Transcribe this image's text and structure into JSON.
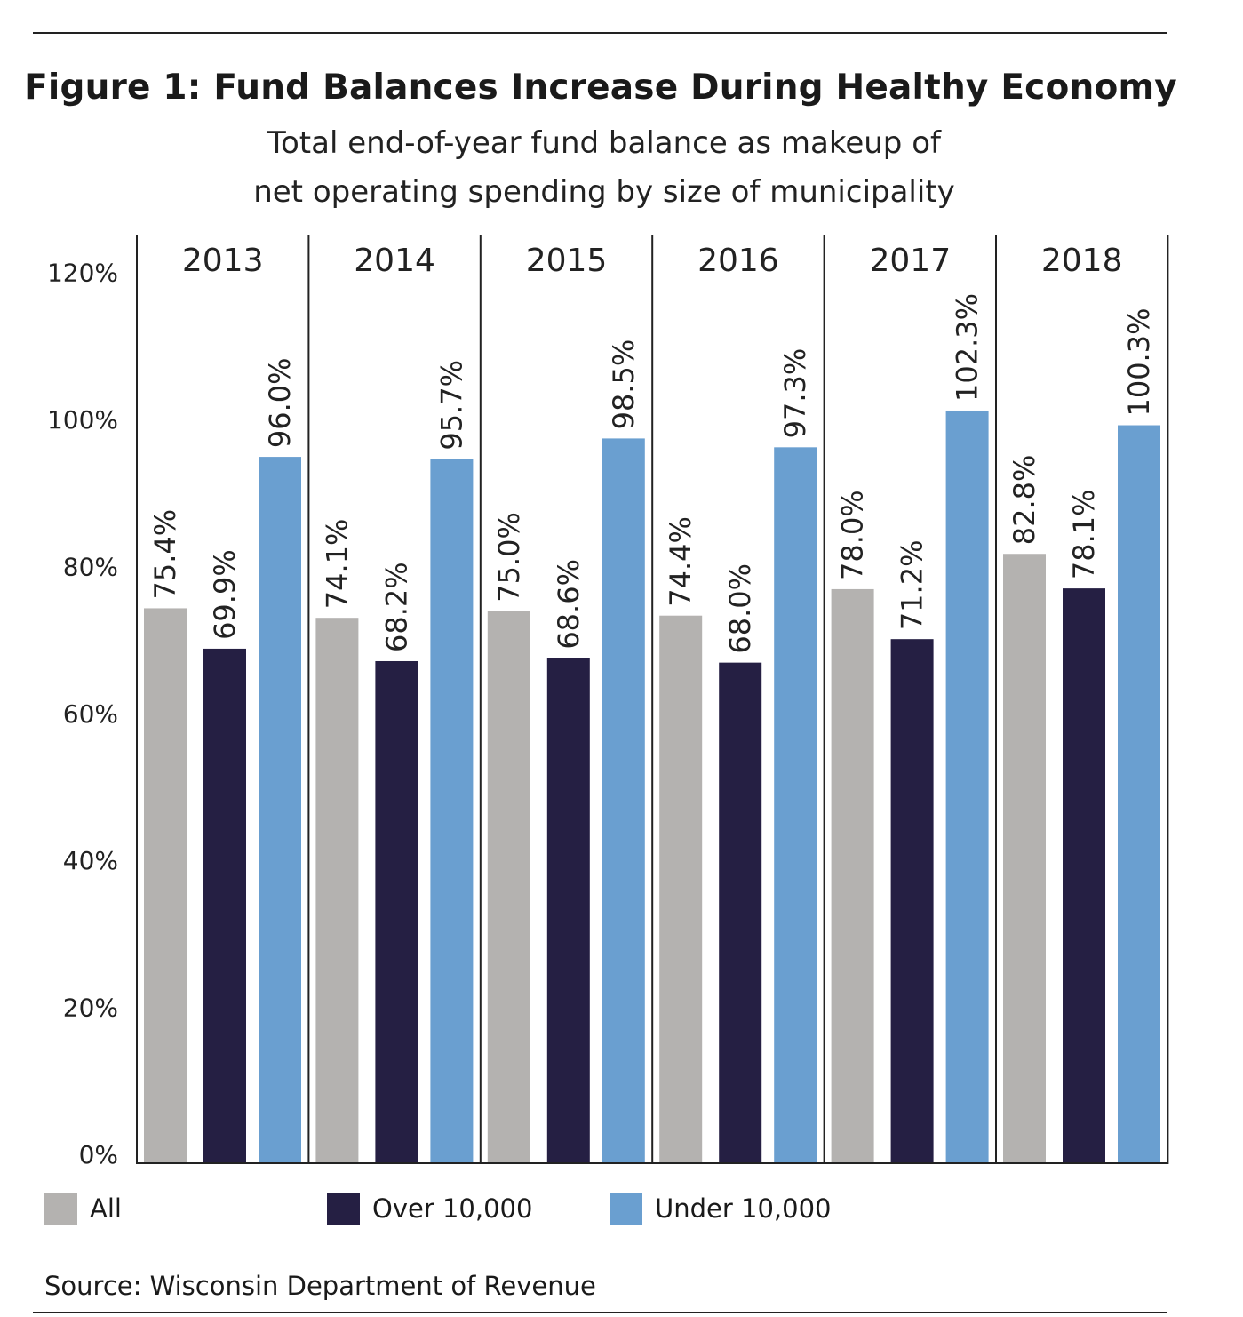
{
  "header": {
    "title": "Figure 1: Fund Balances Increase During Healthy Economy",
    "subtitle": "Total end-of-year fund balance as makeup of net operating spending by size of municipality"
  },
  "colors": {
    "all": "#b4b2b0",
    "over": "#251f43",
    "under": "#6a9fd0"
  },
  "legend": [
    {
      "name": "All",
      "color": "#b4b2b0"
    },
    {
      "name": "Over 10,000",
      "color": "#251f43"
    },
    {
      "name": "Under 10,000",
      "color": "#6a9fd0"
    }
  ],
  "source": "Source: Wisconsin Department of Revenue",
  "chart_data": {
    "type": "bar",
    "categories": [
      "2013",
      "2014",
      "2015",
      "2016",
      "2017",
      "2018"
    ],
    "series": [
      {
        "name": "All",
        "values": [
          75.4,
          74.1,
          75.0,
          74.4,
          78.0,
          82.8
        ],
        "labels": [
          "75.4%",
          "74.1%",
          "75.0%",
          "74.4%",
          "78.0%",
          "82.8%"
        ]
      },
      {
        "name": "Over 10,000",
        "values": [
          69.9,
          68.2,
          68.6,
          68.0,
          71.2,
          78.1
        ],
        "labels": [
          "69.9%",
          "68.2%",
          "68.6%",
          "68.0%",
          "71.2%",
          "78.1%"
        ]
      },
      {
        "name": "Under 10,000",
        "values": [
          96.0,
          95.7,
          98.5,
          97.3,
          102.3,
          100.3
        ],
        "labels": [
          "96.0%",
          "95.7%",
          "98.5%",
          "97.3%",
          "102.3%",
          "100.3%"
        ]
      }
    ],
    "yticks": [
      "0%",
      "20%",
      "40%",
      "60%",
      "80%",
      "100%",
      "120%"
    ],
    "ylim": [
      0,
      120
    ],
    "title": "Figure 1: Fund Balances Increase During Healthy Economy",
    "subtitle": "Total end-of-year fund balance as makeup of net operating spending by size of municipality",
    "grid": false,
    "legend_position": "bottom"
  }
}
